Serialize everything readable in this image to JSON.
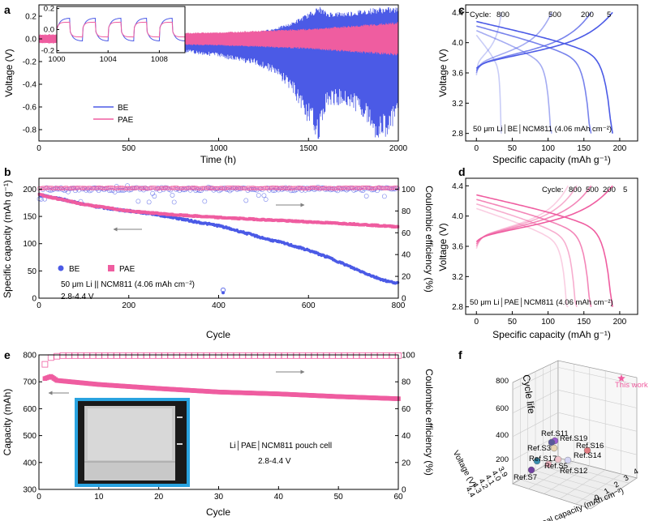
{
  "panel_labels": {
    "a": "a",
    "b": "b",
    "c": "c",
    "d": "d",
    "e": "e",
    "f": "f"
  },
  "colors": {
    "BE": "#4b5ae6",
    "PAE": "#ef5da0",
    "arrow": "#808080"
  },
  "chart_data": [
    {
      "id": "a",
      "type": "line",
      "xlabel": "Time (h)",
      "ylabel": "Voltage (V)",
      "xlim": [
        0,
        2000
      ],
      "ylim": [
        -0.9,
        0.3
      ],
      "xticks": [
        0,
        500,
        1000,
        1500,
        2000
      ],
      "yticks": [
        -0.8,
        -0.6,
        -0.4,
        -0.2,
        0.0,
        0.2
      ],
      "ytick_labels": [
        "-0.8",
        "-0.6",
        "-0.4",
        "-0.2",
        "0.0",
        "0.2"
      ],
      "legend": [
        "BE",
        "PAE"
      ],
      "series": [
        {
          "name": "BE",
          "envelope_time": [
            0,
            500,
            600,
            800,
            1000,
            1100,
            1200,
            1300,
            1400,
            1500,
            1560,
            1600,
            1700,
            1800,
            1880,
            1950,
            2000
          ],
          "upper": [
            0.03,
            0.03,
            0.02,
            0.035,
            0.04,
            0.05,
            0.06,
            0.09,
            0.14,
            0.23,
            0.29,
            0.24,
            0.24,
            0.26,
            0.28,
            0.28,
            0.28
          ],
          "lower": [
            -0.03,
            -0.03,
            -0.1,
            -0.12,
            -0.16,
            -0.2,
            -0.23,
            -0.3,
            -0.45,
            -0.75,
            -0.9,
            -0.6,
            -0.58,
            -0.68,
            -0.9,
            -0.85,
            -0.7
          ]
        },
        {
          "name": "PAE",
          "envelope_time": [
            0,
            500,
            1000,
            1500,
            2000
          ],
          "upper": [
            0.04,
            0.045,
            0.06,
            0.09,
            0.15
          ],
          "lower": [
            -0.04,
            -0.045,
            -0.06,
            -0.09,
            -0.15
          ]
        }
      ],
      "inset": {
        "xlim": [
          1000,
          1010
        ],
        "ylim": [
          -0.22,
          0.22
        ],
        "xticks": [
          1000,
          1004,
          1008
        ],
        "yticks": [
          0.2,
          0.0,
          -0.2
        ],
        "ytick_labels": [
          "0.2",
          "0.0",
          "-0.2"
        ],
        "period_h": 2,
        "BE_amp": 0.11,
        "PAE_amp": 0.07
      }
    },
    {
      "id": "b",
      "type": "scatter",
      "xlabel": "Cycle",
      "ylabel": "Specific capacity (mAh g⁻¹)",
      "ylabel2": "Coulombic efficiency (%)",
      "xlim": [
        0,
        800
      ],
      "ylim": [
        0,
        220
      ],
      "y2lim": [
        0,
        110
      ],
      "xticks": [
        0,
        200,
        400,
        600,
        800
      ],
      "yticks": [
        0,
        50,
        100,
        150,
        200
      ],
      "y2ticks": [
        0,
        20,
        40,
        60,
        80,
        100
      ],
      "legend": [
        "BE",
        "PAE"
      ],
      "annotation": [
        "50 μm Li || NCM811 (4.06 mAh cm⁻²)",
        "2.8-4.4 V"
      ],
      "series": [
        {
          "name": "BE capacity",
          "x": [
            0,
            50,
            100,
            150,
            200,
            250,
            300,
            350,
            400,
            450,
            500,
            550,
            600,
            650,
            700,
            750,
            780,
            800
          ],
          "y": [
            190,
            182,
            172,
            165,
            160,
            155,
            148,
            140,
            133,
            122,
            110,
            100,
            88,
            73,
            55,
            38,
            30,
            28
          ]
        },
        {
          "name": "PAE capacity",
          "x": [
            0,
            100,
            200,
            300,
            400,
            500,
            600,
            700,
            800
          ],
          "y": [
            190,
            172,
            160,
            153,
            148,
            144,
            140,
            136,
            131
          ]
        },
        {
          "name": "BE CE",
          "mean": 100,
          "scatter_range": [
            88,
            104
          ],
          "outlier": {
            "x": 410,
            "y": 10
          }
        },
        {
          "name": "PAE CE",
          "mean": 101,
          "scatter_range": [
            100,
            102
          ]
        }
      ]
    },
    {
      "id": "c",
      "type": "line",
      "xlabel": "Specific capacity (mAh g⁻¹)",
      "ylabel": "Voltage (V)",
      "xlim": [
        -15,
        225
      ],
      "ylim": [
        2.7,
        4.5
      ],
      "xticks": [
        0,
        50,
        100,
        150,
        200
      ],
      "yticks": [
        2.8,
        3.2,
        3.6,
        4.0,
        4.4
      ],
      "legend_title": "Cycle:",
      "cycle_labels": [
        "800",
        "500",
        "200",
        "5"
      ],
      "capacities": [
        35,
        105,
        160,
        190
      ],
      "annotation": "50 μm Li│BE│NCM811 (4.06 mAh cm⁻²)"
    },
    {
      "id": "d",
      "type": "line",
      "xlabel": "Specific capacity (mAh g⁻¹)",
      "ylabel": "Voltage (V)",
      "xlim": [
        -15,
        225
      ],
      "ylim": [
        2.7,
        4.5
      ],
      "xticks": [
        0,
        50,
        100,
        150,
        200
      ],
      "yticks": [
        2.8,
        3.2,
        3.6,
        4.0,
        4.4
      ],
      "legend_title": "Cycle:",
      "cycle_labels": [
        "800",
        "500",
        "200",
        "5"
      ],
      "capacities": [
        128,
        140,
        160,
        190
      ],
      "annotation": "50 μm Li│PAE│NCM811 (4.06 mAh cm⁻²)"
    },
    {
      "id": "e",
      "type": "scatter",
      "xlabel": "Cycle",
      "ylabel": "Capacity (mAh)",
      "ylabel2": "Coulombic efficiency (%)",
      "xlim": [
        0,
        60
      ],
      "ylim": [
        300,
        800
      ],
      "y2lim": [
        0,
        100
      ],
      "xticks": [
        0,
        10,
        20,
        30,
        40,
        50,
        60
      ],
      "yticks": [
        300,
        400,
        500,
        600,
        700,
        800
      ],
      "y2ticks": [
        0,
        20,
        40,
        60,
        80,
        100
      ],
      "annotation": [
        "Li│PAE│NCM811 pouch cell",
        "2.8-4.4 V"
      ],
      "series": [
        {
          "name": "Capacity",
          "x": [
            1,
            2,
            3,
            10,
            20,
            30,
            40,
            50,
            60
          ],
          "y": [
            712,
            720,
            705,
            690,
            675,
            662,
            655,
            645,
            637
          ]
        },
        {
          "name": "CE",
          "x": [
            1,
            2,
            3,
            4,
            60
          ],
          "y": [
            93,
            98,
            99,
            99.5,
            99.5
          ]
        }
      ]
    },
    {
      "id": "f",
      "type": "scatter3d",
      "xlabel": "Areal capacity (mAh cm⁻²)",
      "ylabel": "Voltage (V)",
      "zlabel": "Cycle life",
      "xticks": [
        "0",
        "1",
        "2",
        "3",
        "4"
      ],
      "yticks": [
        "3.9",
        "4.0",
        "4.1",
        "4.2",
        "4.3",
        "4.4"
      ],
      "zticks": [
        "0",
        "200",
        "400",
        "600",
        "800"
      ],
      "points": [
        {
          "label": "This work",
          "color": "#ef5da0",
          "marker": "star"
        },
        {
          "label": "Ref.S11",
          "color": "#9b5bd0"
        },
        {
          "label": "Ref.S3",
          "color": "#5a5a9a"
        },
        {
          "label": "Ref.S19",
          "color": "#e8d4b0"
        },
        {
          "label": "Ref.S17",
          "color": "#3a8fb0"
        },
        {
          "label": "Ref.S16",
          "color": "#e07a80"
        },
        {
          "label": "Ref.S5",
          "color": "#f0b3c0"
        },
        {
          "label": "Ref.S14",
          "color": "#d4d4f4"
        },
        {
          "label": "Ref.S12",
          "color": "#f2c4cc"
        },
        {
          "label": "Ref.S7",
          "color": "#7040a0"
        }
      ]
    }
  ]
}
